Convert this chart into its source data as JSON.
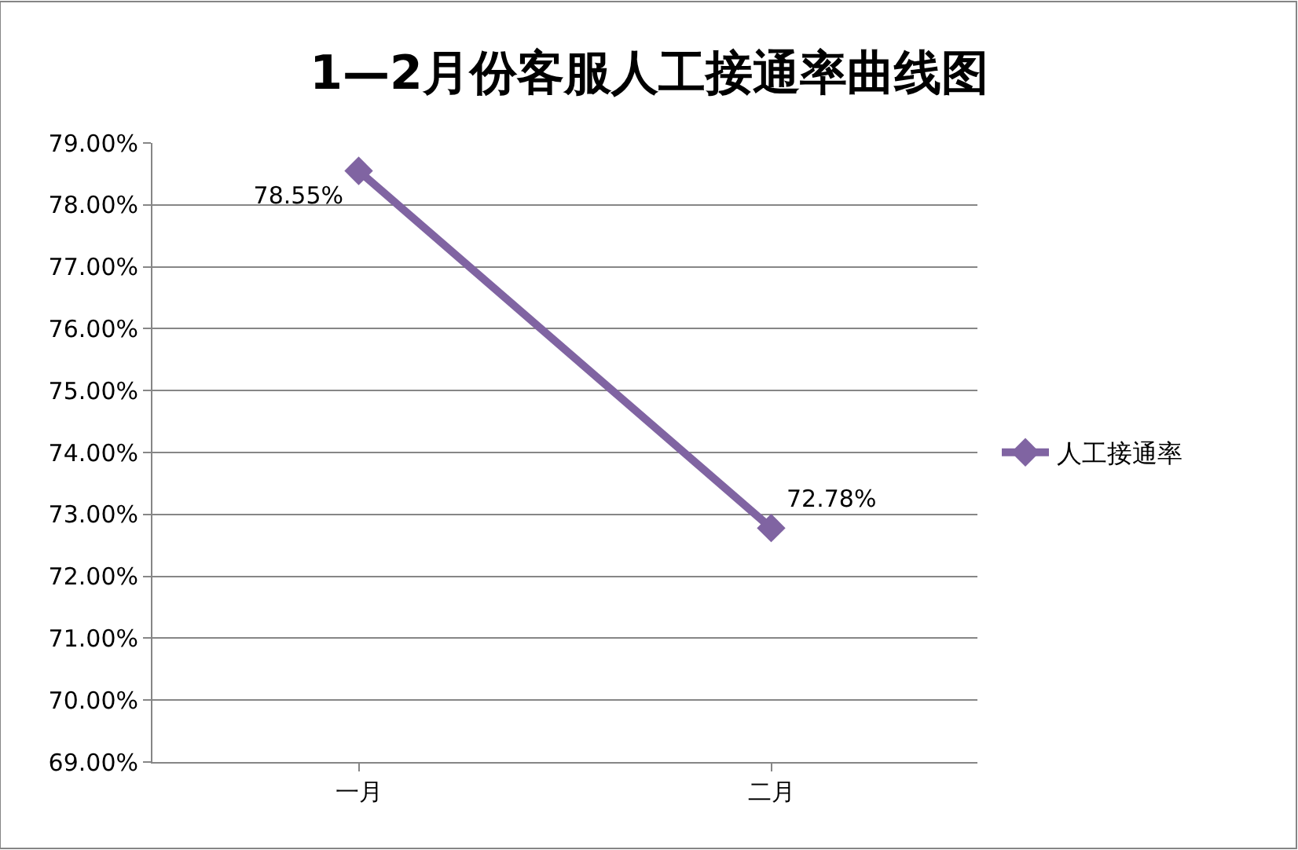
{
  "chart_data": {
    "type": "line",
    "title": "1—2月份客服人工接通率曲线图",
    "categories": [
      "一月",
      "二月"
    ],
    "series": [
      {
        "name": "人工接通率",
        "color": "#8064a2",
        "values": [
          78.55,
          72.78
        ],
        "value_labels": [
          "78.55%",
          "72.78%"
        ]
      }
    ],
    "ylim": [
      69,
      79
    ],
    "yticks": [
      {
        "value": 69,
        "label": "69.00%"
      },
      {
        "value": 70,
        "label": "70.00%"
      },
      {
        "value": 71,
        "label": "71.00%"
      },
      {
        "value": 72,
        "label": "72.00%"
      },
      {
        "value": 73,
        "label": "73.00%"
      },
      {
        "value": 74,
        "label": "74.00%"
      },
      {
        "value": 75,
        "label": "75.00%"
      },
      {
        "value": 76,
        "label": "76.00%"
      },
      {
        "value": 77,
        "label": "77.00%"
      },
      {
        "value": 78,
        "label": "78.00%"
      },
      {
        "value": 79,
        "label": "79.00%"
      }
    ],
    "grid": "y",
    "legend": "right",
    "marker": "diamond",
    "line_style": "solid"
  }
}
